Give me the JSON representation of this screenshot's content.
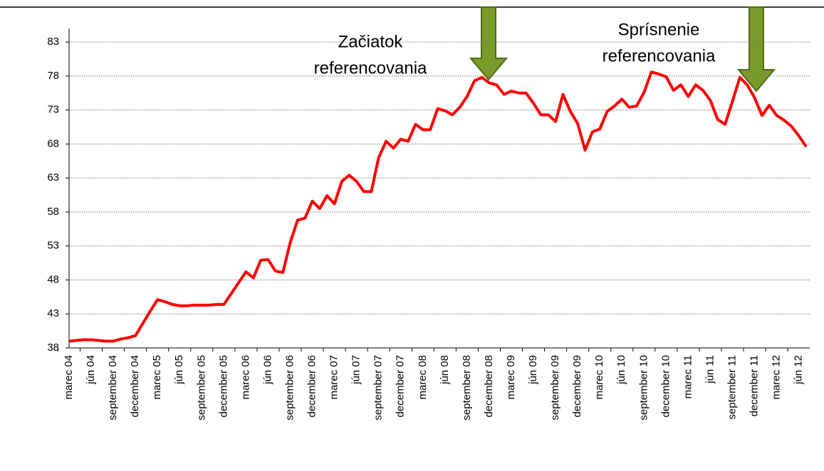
{
  "chart_data": {
    "type": "line",
    "annotations": [
      [
        "Začiatok",
        "referencovania"
      ],
      [
        "Sprísnenie",
        "referencovania"
      ]
    ],
    "categories": [
      "marec 04",
      null,
      null,
      "jún 04",
      null,
      null,
      "september 04",
      null,
      null,
      "december 04",
      null,
      null,
      "marec 05",
      null,
      null,
      "jún 05",
      null,
      null,
      "september 05",
      null,
      null,
      "december 05",
      null,
      null,
      "marec 06",
      null,
      null,
      "jún 06",
      null,
      null,
      "september 06",
      null,
      null,
      "december 06",
      null,
      null,
      "marec 07",
      null,
      null,
      "jún 07",
      null,
      null,
      "september 07",
      null,
      null,
      "december 07",
      null,
      null,
      "marec 08",
      null,
      null,
      "jún 08",
      null,
      null,
      "september 08",
      null,
      null,
      "december 08",
      null,
      null,
      "marec 09",
      null,
      null,
      "jún 09",
      null,
      null,
      "september 09",
      null,
      null,
      "december 09",
      null,
      null,
      "marec 10",
      null,
      null,
      "jún 10",
      null,
      null,
      "september 10",
      null,
      null,
      "december 10",
      null,
      null,
      "marec 11",
      null,
      null,
      "jún 11",
      null,
      null,
      "september 11",
      null,
      null,
      "december 11",
      null,
      null,
      "marec 12",
      null,
      null,
      "jún 12",
      null
    ],
    "values": [
      39.0,
      39.1,
      39.2,
      39.2,
      39.1,
      39.0,
      39.0,
      39.3,
      39.5,
      39.8,
      41.6,
      43.4,
      45.1,
      44.8,
      44.4,
      44.2,
      44.2,
      44.3,
      44.3,
      44.3,
      44.4,
      44.4,
      46.0,
      47.6,
      49.2,
      48.3,
      50.9,
      51.0,
      49.3,
      49.1,
      53.5,
      56.8,
      57.1,
      59.6,
      58.5,
      60.4,
      59.2,
      62.5,
      63.4,
      62.5,
      61.0,
      61.0,
      66.0,
      68.4,
      67.4,
      68.7,
      68.4,
      70.9,
      70.1,
      70.1,
      73.2,
      72.9,
      72.3,
      73.4,
      75.0,
      77.3,
      77.8,
      77.0,
      76.7,
      75.3,
      75.8,
      75.5,
      75.5,
      74.0,
      72.3,
      72.3,
      71.3,
      75.3,
      72.8,
      71.0,
      67.1,
      69.8,
      70.2,
      72.8,
      73.6,
      74.6,
      73.4,
      73.6,
      75.6,
      78.6,
      78.3,
      77.9,
      75.9,
      76.7,
      75.0,
      76.7,
      75.9,
      74.4,
      71.6,
      70.9,
      74.3,
      77.8,
      76.7,
      74.8,
      72.2,
      73.7,
      72.2,
      71.5,
      70.6,
      69.2,
      67.6
    ],
    "color": "#ff0000",
    "ylim": [
      38,
      85
    ],
    "yticks": [
      38,
      43,
      48,
      53,
      58,
      63,
      68,
      73,
      78,
      83
    ],
    "grid": true
  }
}
